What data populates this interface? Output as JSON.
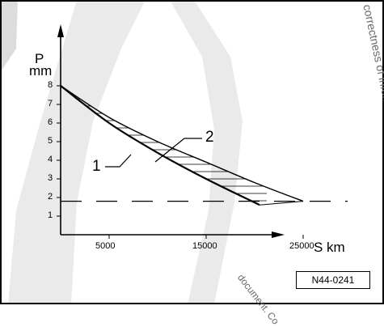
{
  "axes": {
    "y_symbol": "P",
    "y_unit": "mm",
    "x_label": "S km",
    "y_ticks": [
      "1",
      "2",
      "3",
      "4",
      "5",
      "6",
      "7",
      "8"
    ],
    "x_ticks": [
      "5000",
      "15000",
      "25000"
    ]
  },
  "callouts": [
    "1",
    "2"
  ],
  "figure_id": "N44-0241",
  "watermark": {
    "right_vertical": "correctness of information in this",
    "bottom_diagonal": "document. Co"
  },
  "chart_data": {
    "type": "line",
    "xlabel": "S km",
    "ylabel": "P mm",
    "xticks": [
      5000,
      15000,
      25000
    ],
    "yticks": [
      1,
      2,
      3,
      4,
      5,
      6,
      7,
      8
    ],
    "xlim": [
      0,
      33000
    ],
    "ylim": [
      0,
      9
    ],
    "series": [
      {
        "name": "1",
        "x": [
          0,
          5000,
          10000,
          15000,
          20500
        ],
        "y": [
          8,
          6,
          4.4,
          3.0,
          1.6
        ]
      },
      {
        "name": "2",
        "x": [
          0,
          5000,
          10000,
          15000,
          20000,
          25000
        ],
        "y": [
          8,
          6.3,
          5.0,
          3.9,
          2.8,
          1.8
        ]
      }
    ],
    "reference_line": {
      "y": 1.8,
      "style": "dashed"
    },
    "colors": {
      "ink": "#000000",
      "watermark_gray": "#d6d6d6"
    }
  }
}
